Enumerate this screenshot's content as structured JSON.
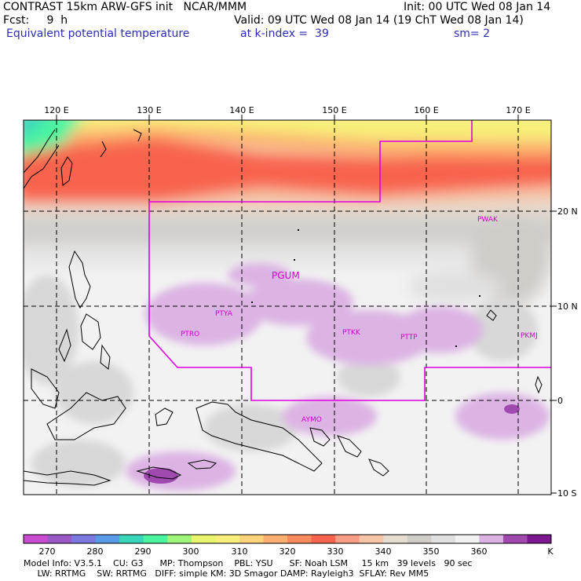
{
  "header": {
    "line1_left": "CONTRAST 15km ARW-GFS init   NCAR/MMM",
    "line1_right": "Init: 00 UTC Wed 08 Jan 14",
    "line2_left": "Fcst:     9  h",
    "line2_right": "Valid: 09 UTC Wed 08 Jan 14 (19 ChT Wed 08 Jan 14)",
    "line3_left": "Equivalent potential temperature",
    "line3_mid": "at k-index =  39",
    "line3_right": "sm= 2"
  },
  "map": {
    "lon_labels": [
      "120 E",
      "130 E",
      "140 E",
      "150 E",
      "160 E",
      "170 E"
    ],
    "lat_labels": [
      "20 N",
      "10 N",
      "0",
      "10 S"
    ],
    "stations": [
      "PWAK",
      "PGUM",
      "PTYA",
      "PTRO",
      "PTKK",
      "PTTP",
      "PKMJ",
      "AYMO"
    ],
    "colors": {
      "boundary": "#e000e0",
      "grid": "#000000"
    }
  },
  "colorbar": {
    "colors": [
      "#c84bd2",
      "#9b59c7",
      "#7b78e0",
      "#5a9be8",
      "#3ad6b9",
      "#4cf5a0",
      "#9ef57a",
      "#e8f56c",
      "#f8f07a",
      "#fcd27a",
      "#fcb070",
      "#fa8a60",
      "#f8644e",
      "#f89e86",
      "#f6c4a6",
      "#e6dcd0",
      "#d0ccc8",
      "#e0e0e0",
      "#f2f2f2",
      "#dcb4e4",
      "#a04ab0",
      "#7e1890"
    ],
    "labels": [
      "270",
      "280",
      "290",
      "300",
      "310",
      "320",
      "330",
      "340",
      "350",
      "360"
    ],
    "unit": "K"
  },
  "footer": {
    "line1": "Model Info: V3.5.1    CU: G3      MP: Thompson    PBL: YSU      SF: Noah LSM     15 km   39 levels   90 sec",
    "line2": "     LW: RRTMG    SW: RRTMG   DIFF: simple KM: 3D Smagor DAMP: Rayleigh3  SFLAY: Rev MM5"
  }
}
